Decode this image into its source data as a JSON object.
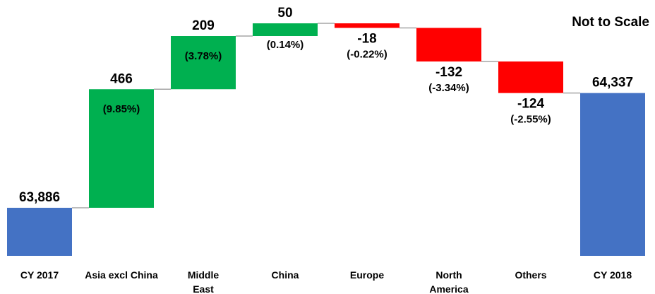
{
  "chart_data": {
    "type": "waterfall",
    "annotation": "Not to Scale",
    "categories": [
      "CY 2017",
      "Asia excl China",
      "Middle\nEast",
      "China",
      "Europe",
      "North\nAmerica",
      "Others",
      "CY 2018"
    ],
    "measure": [
      "total",
      "relative",
      "relative",
      "relative",
      "relative",
      "relative",
      "relative",
      "total"
    ],
    "values": [
      63886,
      466,
      209,
      50,
      -18,
      -132,
      -124,
      64337
    ],
    "value_labels": [
      "63,886",
      "466",
      "209",
      "50",
      "-18",
      "-132",
      "-124",
      "64,337"
    ],
    "percent_labels": [
      null,
      "(9.85%)",
      "(3.78%)",
      "(0.14%)",
      "(-0.22%)",
      "(-3.34%)",
      "(-2.55%)",
      null
    ],
    "colors": {
      "total": "#4472c4",
      "increase": "#00b050",
      "decrease": "#ff0000"
    }
  }
}
